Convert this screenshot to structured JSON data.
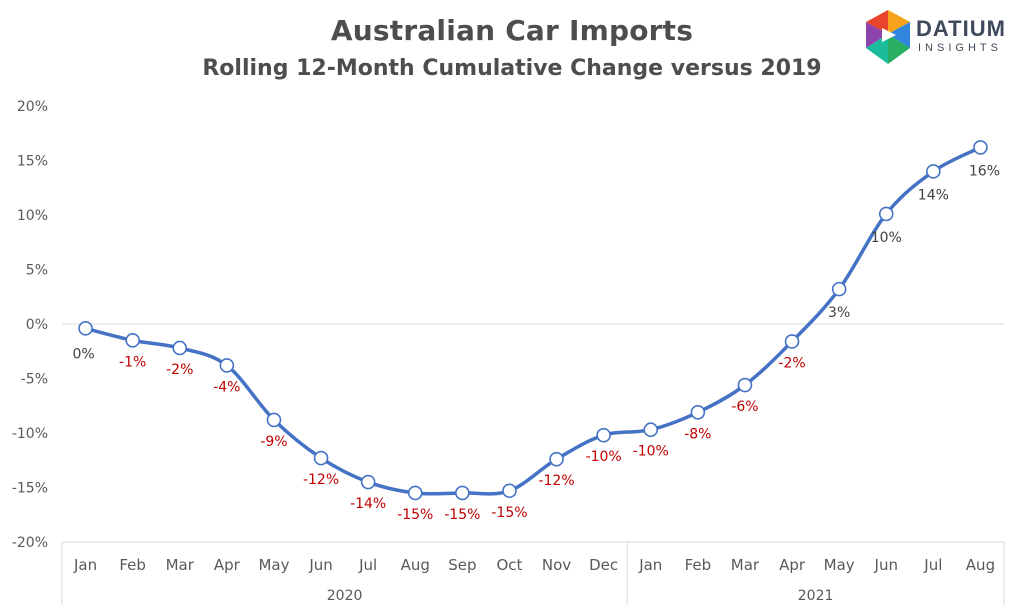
{
  "title": "Australian Car Imports",
  "subtitle": "Rolling 12-Month Cumulative Change versus 2019",
  "logo": {
    "name": "DATIUM",
    "sub": "INSIGHTS"
  },
  "colors": {
    "line": "#4472C4",
    "negative": "#C00000",
    "positive": "#404040",
    "axis": "#d9d9d9"
  },
  "chart_data": {
    "type": "line",
    "title": "Australian Car Imports",
    "subtitle": "Rolling 12-Month Cumulative Change versus 2019",
    "categories": [
      "Jan",
      "Feb",
      "Mar",
      "Apr",
      "May",
      "Jun",
      "Jul",
      "Aug",
      "Sep",
      "Oct",
      "Nov",
      "Dec",
      "Jan",
      "Feb",
      "Mar",
      "Apr",
      "May",
      "Jun",
      "Jul",
      "Aug"
    ],
    "groups": [
      {
        "label": "2020",
        "count": 12
      },
      {
        "label": "2021",
        "count": 8
      }
    ],
    "values": [
      -0.4,
      -1.5,
      -2.2,
      -3.8,
      -8.8,
      -12.3,
      -14.5,
      -15.5,
      -15.5,
      -15.3,
      -12.4,
      -10.2,
      -9.7,
      -8.1,
      -5.6,
      -1.6,
      3.2,
      10.1,
      14.0,
      16.2
    ],
    "data_labels": [
      "0%",
      "-1%",
      "-2%",
      "-4%",
      "-9%",
      "-12%",
      "-14%",
      "-15%",
      "-15%",
      "-15%",
      "-12%",
      "-10%",
      "-10%",
      "-8%",
      "-6%",
      "-2%",
      "3%",
      "10%",
      "14%",
      "16%"
    ],
    "y_ticks": [
      "20%",
      "15%",
      "10%",
      "5%",
      "0%",
      "-5%",
      "-10%",
      "-15%",
      "-20%"
    ],
    "ylim": [
      -20,
      20
    ],
    "grid": false,
    "legend": "none"
  }
}
